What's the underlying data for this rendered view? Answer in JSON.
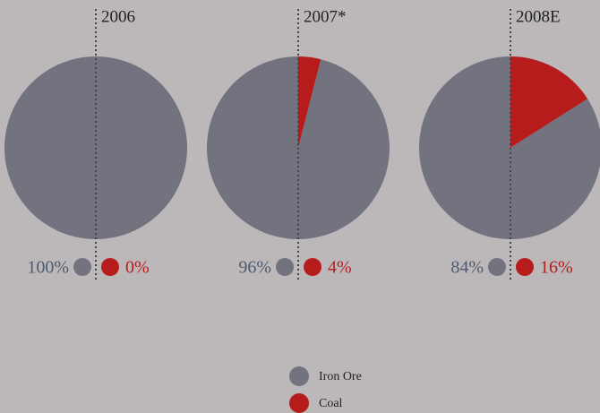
{
  "chart_data": [
    {
      "type": "pie",
      "title": "2006",
      "categories": [
        "Iron Ore",
        "Coal"
      ],
      "values": [
        100,
        0
      ],
      "value_labels": [
        "100%",
        "0%"
      ],
      "colors": [
        "#72737f",
        "#b71c1c"
      ]
    },
    {
      "type": "pie",
      "title": "2007*",
      "categories": [
        "Iron Ore",
        "Coal"
      ],
      "values": [
        96,
        4
      ],
      "value_labels": [
        "96%",
        "4%"
      ],
      "colors": [
        "#72737f",
        "#b71c1c"
      ]
    },
    {
      "type": "pie",
      "title": "2008E",
      "categories": [
        "Iron Ore",
        "Coal"
      ],
      "values": [
        84,
        16
      ],
      "value_labels": [
        "84%",
        "16%"
      ],
      "colors": [
        "#72737f",
        "#b71c1c"
      ]
    }
  ]
}
